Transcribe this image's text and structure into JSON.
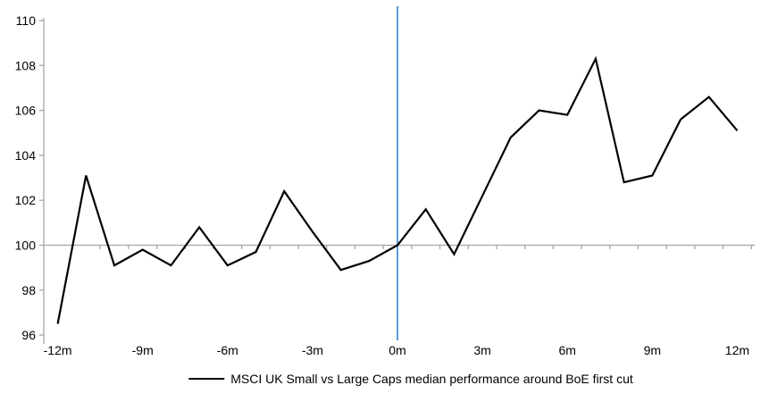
{
  "chart_data": {
    "type": "line",
    "title": "",
    "xlabel": "",
    "ylabel": "",
    "x": [
      -12,
      -11,
      -10,
      -9,
      -8,
      -7,
      -6,
      -5,
      -4,
      -3,
      -2,
      -1,
      0,
      1,
      2,
      3,
      4,
      5,
      6,
      7,
      8,
      9,
      10,
      11,
      12
    ],
    "series": [
      {
        "name": "MSCI UK Small vs Large Caps median performance around BoE first cut",
        "color": "#000000",
        "values": [
          96.5,
          103.1,
          99.1,
          99.8,
          99.1,
          100.8,
          99.1,
          99.7,
          102.4,
          100.6,
          98.9,
          99.3,
          100.0,
          101.6,
          99.6,
          102.2,
          104.8,
          106.0,
          105.8,
          108.3,
          102.8,
          103.1,
          105.6,
          106.6,
          105.1
        ]
      }
    ],
    "xtick_positions": [
      -12,
      -9,
      -6,
      -3,
      0,
      3,
      6,
      9,
      12
    ],
    "xtick_labels": [
      "-12m",
      "-9m",
      "-6m",
      "-3m",
      "0m",
      "3m",
      "6m",
      "9m",
      "12m"
    ],
    "yticks": [
      96,
      98,
      100,
      102,
      104,
      106,
      108,
      110
    ],
    "ylim": [
      96,
      110
    ],
    "x_axis_crosses_at": 100,
    "event_line": {
      "x": 0,
      "color": "#5B9BD5"
    },
    "axis_color": "#A6A6A6",
    "text_color": "#000000",
    "grid": false,
    "legend_position": "bottom-center"
  }
}
